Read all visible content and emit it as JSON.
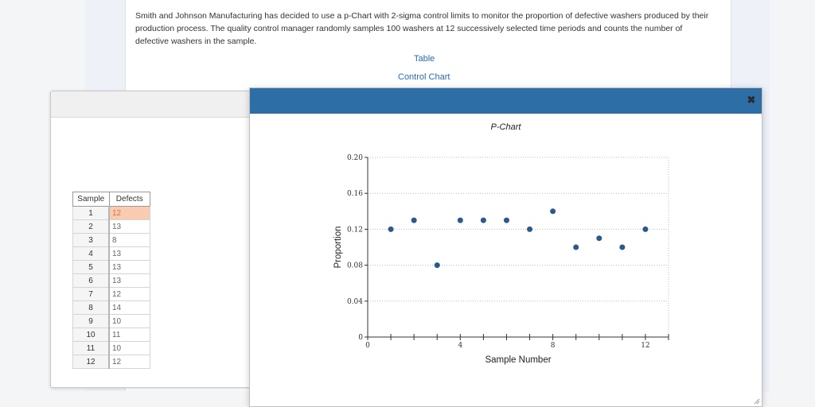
{
  "question": {
    "text": "Smith and Johnson Manufacturing has decided to use a p-Chart with 2-sigma control limits to monitor the proportion of defective washers produced by their production process. The quality control manager randomly samples 100 washers at 12 successively selected time periods and counts the number of defective washers in the sample.",
    "table_link": "Table",
    "chart_link": "Control Chart"
  },
  "table": {
    "headers": [
      "Sample",
      "Defects"
    ],
    "rows": [
      [
        "1",
        "12"
      ],
      [
        "2",
        "13"
      ],
      [
        "3",
        "8"
      ],
      [
        "4",
        "13"
      ],
      [
        "5",
        "13"
      ],
      [
        "6",
        "13"
      ],
      [
        "7",
        "12"
      ],
      [
        "8",
        "14"
      ],
      [
        "9",
        "10"
      ],
      [
        "10",
        "11"
      ],
      [
        "11",
        "10"
      ],
      [
        "12",
        "12"
      ]
    ]
  },
  "chart_window": {
    "close_label": "✖"
  },
  "colors": {
    "header_blue": "#2e6ea6",
    "point": "#2a5a8c",
    "link": "#2a6cb5",
    "selected_cell": "#f9cbb0"
  },
  "chart_data": {
    "type": "scatter",
    "title": "P-Chart",
    "xlabel": "Sample Number",
    "ylabel": "Proportion",
    "xlim": [
      0,
      13
    ],
    "ylim": [
      0,
      0.2
    ],
    "x_ticks": [
      "0",
      "4",
      "8",
      "12"
    ],
    "y_ticks": [
      "0",
      "0.04",
      "0.08",
      "0.12",
      "0.16",
      "0.20"
    ],
    "grid": true,
    "x": [
      1,
      2,
      3,
      4,
      5,
      6,
      7,
      8,
      9,
      10,
      11,
      12
    ],
    "y": [
      0.12,
      0.13,
      0.08,
      0.13,
      0.13,
      0.13,
      0.12,
      0.14,
      0.1,
      0.11,
      0.1,
      0.12
    ]
  }
}
